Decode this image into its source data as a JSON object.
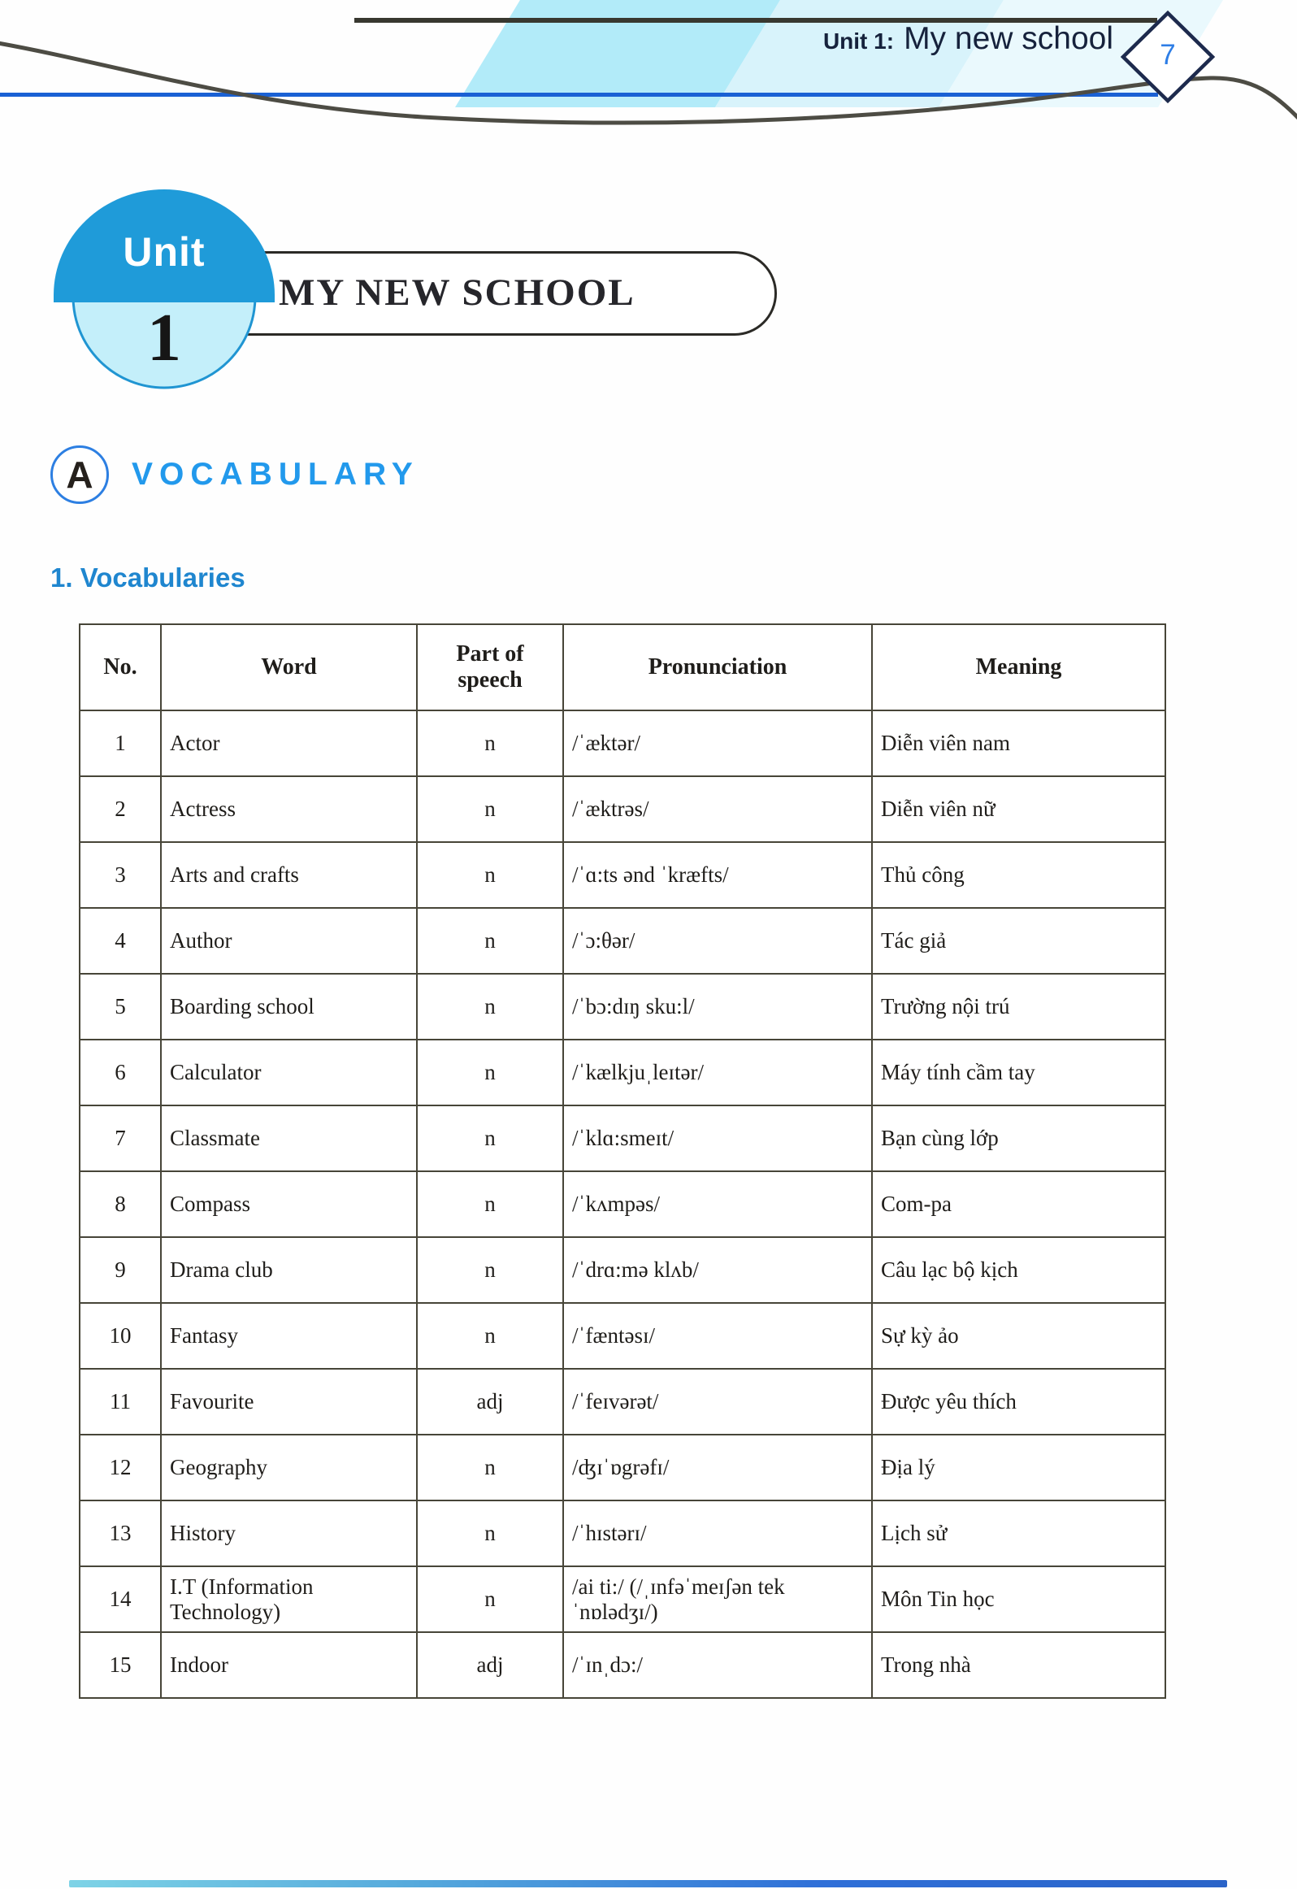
{
  "header": {
    "unit_label": "Unit 1:",
    "unit_title": "My new school",
    "page_number": "7"
  },
  "badge": {
    "word": "Unit",
    "number": "1"
  },
  "unit_box_title": "MY NEW SCHOOL",
  "section": {
    "letter": "A",
    "heading": "VOCABULARY"
  },
  "subheading": "1. Vocabularies",
  "table": {
    "headers": [
      "No.",
      "Word",
      "Part of speech",
      "Pronunciation",
      "Meaning"
    ],
    "rows": [
      {
        "no": "1",
        "word": "Actor",
        "pos": "n",
        "pron": "/ˈæktər/",
        "meaning": "Diễn viên nam"
      },
      {
        "no": "2",
        "word": "Actress",
        "pos": "n",
        "pron": "/ˈæktrəs/",
        "meaning": "Diễn viên nữ"
      },
      {
        "no": "3",
        "word": "Arts and crafts",
        "pos": "n",
        "pron": "/ˈɑ:ts ənd ˈkræfts/",
        "meaning": "Thủ công"
      },
      {
        "no": "4",
        "word": "Author",
        "pos": "n",
        "pron": "/ˈɔ:θər/",
        "meaning": "Tác giả"
      },
      {
        "no": "5",
        "word": "Boarding school",
        "pos": "n",
        "pron": "/ˈbɔ:dɪŋ sku:l/",
        "meaning": "Trường nội trú"
      },
      {
        "no": "6",
        "word": "Calculator",
        "pos": "n",
        "pron": "/ˈkælkjuˌleɪtər/",
        "meaning": "Máy tính cầm tay"
      },
      {
        "no": "7",
        "word": "Classmate",
        "pos": "n",
        "pron": "/ˈklɑ:smeɪt/",
        "meaning": "Bạn cùng lớp"
      },
      {
        "no": "8",
        "word": "Compass",
        "pos": "n",
        "pron": "/ˈkʌmpəs/",
        "meaning": "Com-pa"
      },
      {
        "no": "9",
        "word": "Drama club",
        "pos": "n",
        "pron": "/ˈdrɑ:mə klʌb/",
        "meaning": "Câu lạc bộ kịch"
      },
      {
        "no": "10",
        "word": "Fantasy",
        "pos": "n",
        "pron": "/ˈfæntəsɪ/",
        "meaning": "Sự kỳ ảo"
      },
      {
        "no": "11",
        "word": "Favourite",
        "pos": "adj",
        "pron": "/ˈfeɪvərət/",
        "meaning": "Được yêu thích"
      },
      {
        "no": "12",
        "word": "Geography",
        "pos": "n",
        "pron": "/ʤɪˈɒgrəfɪ/",
        "meaning": "Địa lý"
      },
      {
        "no": "13",
        "word": "History",
        "pos": "n",
        "pron": "/ˈhɪstərɪ/",
        "meaning": "Lịch sử"
      },
      {
        "no": "14",
        "word": "I.T (Information Technology)",
        "pos": "n",
        "pron": "/ai ti:/ (/ˌɪnfəˈmeɪʃən tekˈnɒlədʒɪ/)",
        "meaning": "Môn Tin học"
      },
      {
        "no": "15",
        "word": "Indoor",
        "pos": "adj",
        "pron": "/ˈɪnˌdɔ:/",
        "meaning": "Trong nhà"
      }
    ]
  },
  "colors": {
    "band_cyan": "#b2ebf9",
    "band_cyan_mid": "#d8f3fb",
    "band_cyan_pale": "#eaf9fd",
    "top_rule_dark": "#383830",
    "rule_blue": "#1a61d4",
    "swoosh_gray": "#4d4c44",
    "navy_text": "#16223c",
    "diamond_border": "#1d2a4d",
    "page_number_blue": "#2e7ee6",
    "badge_dome_blue": "#1f9bd9",
    "badge_light_cyan": "#c4effa",
    "section_blue": "#2299ec",
    "subheading_blue": "#1f86cf",
    "table_border": "#474538"
  }
}
